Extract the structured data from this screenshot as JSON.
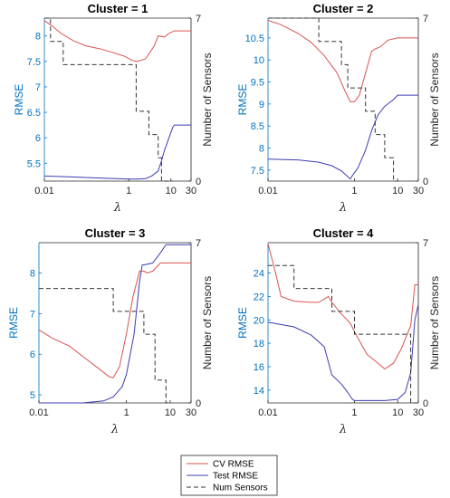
{
  "colors": {
    "cv": "#d9534f",
    "test": "#3c3cb4",
    "num": "#333333",
    "left_axis": "#0072BD"
  },
  "legend": {
    "entries": [
      "CV RMSE",
      "Test RMSE",
      "Num Sensors"
    ]
  },
  "chart_data": [
    {
      "type": "line",
      "title": "Cluster = 1",
      "xlabel": "λ",
      "ylabel": "RMSE",
      "y2label": "Number of Sensors",
      "xscale": "log",
      "xlim": [
        0.01,
        30
      ],
      "xticks": [
        0.01,
        1,
        10,
        30
      ],
      "xtick_labels": [
        "0.01",
        "1",
        "10",
        "30"
      ],
      "ylim": [
        5.15,
        8.35
      ],
      "yticks": [
        5.5,
        6,
        6.5,
        7,
        7.5,
        8
      ],
      "ytick_labels": [
        "5.5",
        "6",
        "6.5",
        "7",
        "7.5",
        "8"
      ],
      "y2lim": [
        0,
        7
      ],
      "y2ticks": [
        0,
        7
      ],
      "series": [
        {
          "name": "CV RMSE",
          "axis": "left",
          "x": [
            0.01,
            0.015,
            0.025,
            0.05,
            0.1,
            0.2,
            0.4,
            0.8,
            1.2,
            1.6,
            2.5,
            4,
            5,
            7,
            9,
            12,
            20,
            30
          ],
          "y": [
            8.3,
            8.2,
            8.05,
            7.9,
            7.8,
            7.75,
            7.68,
            7.6,
            7.52,
            7.5,
            7.55,
            7.8,
            8.0,
            7.98,
            8.05,
            8.1,
            8.1,
            8.1
          ]
        },
        {
          "name": "Test RMSE",
          "axis": "left",
          "x": [
            0.01,
            0.05,
            0.2,
            0.5,
            1,
            1.6,
            2.5,
            3.5,
            5,
            6,
            7,
            9,
            11,
            12,
            20,
            30
          ],
          "y": [
            5.25,
            5.23,
            5.21,
            5.2,
            5.19,
            5.19,
            5.2,
            5.25,
            5.35,
            5.55,
            5.75,
            6.0,
            6.2,
            6.25,
            6.25,
            6.25
          ]
        },
        {
          "name": "Num Sensors",
          "axis": "right",
          "step": true,
          "x": [
            0.01,
            0.014,
            0.028,
            1.5,
            3,
            5,
            6,
            10,
            11
          ],
          "y": [
            7,
            6,
            5,
            3,
            2,
            1,
            0,
            0,
            0
          ]
        }
      ]
    },
    {
      "type": "line",
      "title": "Cluster = 2",
      "xlabel": "λ",
      "ylabel": "RMSE",
      "y2label": "Number of Sensors",
      "xscale": "log",
      "xlim": [
        0.01,
        30
      ],
      "xticks": [
        0.01,
        1,
        10,
        30
      ],
      "xtick_labels": [
        "0.01",
        "1",
        "10",
        "30"
      ],
      "ylim": [
        7.25,
        10.95
      ],
      "yticks": [
        7.5,
        8,
        8.5,
        9,
        9.5,
        10,
        10.5
      ],
      "ytick_labels": [
        "7.5",
        "8",
        "8.5",
        "9",
        "9.5",
        "10",
        "10.5"
      ],
      "y2lim": [
        0,
        7
      ],
      "y2ticks": [
        0,
        7
      ],
      "series": [
        {
          "name": "CV RMSE",
          "axis": "left",
          "x": [
            0.01,
            0.02,
            0.05,
            0.1,
            0.2,
            0.4,
            0.6,
            0.8,
            1,
            1.3,
            1.8,
            2.5,
            3,
            4,
            6,
            10,
            20,
            30
          ],
          "y": [
            10.9,
            10.8,
            10.6,
            10.4,
            10.1,
            9.7,
            9.3,
            9.05,
            9.05,
            9.2,
            9.7,
            10.2,
            10.25,
            10.3,
            10.45,
            10.5,
            10.5,
            10.5
          ]
        },
        {
          "name": "Test RMSE",
          "axis": "left",
          "x": [
            0.01,
            0.05,
            0.15,
            0.3,
            0.5,
            0.7,
            0.8,
            0.9,
            1.2,
            1.8,
            2.5,
            3.5,
            5,
            8,
            10,
            20,
            30
          ],
          "y": [
            7.75,
            7.73,
            7.68,
            7.6,
            7.48,
            7.35,
            7.3,
            7.38,
            7.55,
            7.95,
            8.4,
            8.75,
            8.95,
            9.1,
            9.2,
            9.2,
            9.2
          ]
        },
        {
          "name": "Num Sensors",
          "axis": "right",
          "step": true,
          "x": [
            0.01,
            0.15,
            0.5,
            0.7,
            1.8,
            3,
            5,
            8,
            10
          ],
          "y": [
            7,
            6,
            5,
            4,
            3,
            2,
            1,
            0,
            0
          ]
        }
      ]
    },
    {
      "type": "line",
      "title": "Cluster = 3",
      "xlabel": "λ",
      "ylabel": "RMSE",
      "y2label": "Number of Sensors",
      "xscale": "log",
      "xlim": [
        0.01,
        30
      ],
      "xticks": [
        0.01,
        1,
        10,
        30
      ],
      "xtick_labels": [
        "0.01",
        "1",
        "10",
        "30"
      ],
      "ylim": [
        4.8,
        8.75
      ],
      "yticks": [
        5,
        6,
        7,
        8
      ],
      "ytick_labels": [
        "5",
        "6",
        "7",
        "8"
      ],
      "y2lim": [
        0,
        7
      ],
      "y2ticks": [
        0,
        7
      ],
      "series": [
        {
          "name": "CV RMSE",
          "axis": "left",
          "x": [
            0.01,
            0.02,
            0.05,
            0.1,
            0.2,
            0.4,
            0.5,
            0.7,
            1,
            1.4,
            2,
            2.5,
            3,
            4,
            6,
            10,
            20,
            30
          ],
          "y": [
            6.6,
            6.4,
            6.2,
            5.95,
            5.7,
            5.45,
            5.42,
            5.7,
            6.5,
            7.4,
            8.05,
            8.05,
            8.0,
            8.05,
            8.25,
            8.25,
            8.25,
            8.25
          ]
        },
        {
          "name": "Test RMSE",
          "axis": "left",
          "x": [
            0.01,
            0.1,
            0.3,
            0.5,
            0.8,
            1,
            1.5,
            2,
            2.3,
            2.5,
            4,
            6,
            8,
            10,
            20,
            30
          ],
          "y": [
            4.8,
            4.8,
            4.85,
            4.95,
            5.2,
            5.5,
            6.5,
            7.8,
            8.2,
            8.2,
            8.25,
            8.5,
            8.7,
            8.7,
            8.7,
            8.7
          ]
        },
        {
          "name": "Num Sensors",
          "axis": "right",
          "step": true,
          "x": [
            0.01,
            0.5,
            2.5,
            4.5,
            8,
            9.5
          ],
          "y": [
            5,
            4,
            3,
            1,
            0,
            0
          ]
        }
      ]
    },
    {
      "type": "line",
      "title": "Cluster = 4",
      "xlabel": "λ",
      "ylabel": "RMSE",
      "y2label": "Number of Sensors",
      "xscale": "log",
      "xlim": [
        0.01,
        30
      ],
      "xticks": [
        0.01,
        1,
        10,
        30
      ],
      "xtick_labels": [
        "0.01",
        "1",
        "10",
        "30"
      ],
      "ylim": [
        12.9,
        26.6
      ],
      "yticks": [
        14,
        16,
        18,
        20,
        22,
        24
      ],
      "ytick_labels": [
        "14",
        "16",
        "18",
        "20",
        "22",
        "24"
      ],
      "y2lim": [
        0,
        7
      ],
      "y2ticks": [
        0,
        7
      ],
      "series": [
        {
          "name": "CV RMSE",
          "axis": "left",
          "x": [
            0.01,
            0.015,
            0.02,
            0.04,
            0.1,
            0.15,
            0.25,
            0.3,
            0.5,
            0.8,
            1,
            1.5,
            2,
            3,
            5,
            8,
            12,
            20,
            25,
            30
          ],
          "y": [
            26.5,
            24.0,
            22.0,
            21.6,
            21.5,
            21.5,
            22.0,
            21.5,
            20.5,
            19.7,
            19.0,
            17.8,
            17.0,
            16.5,
            15.8,
            16.3,
            17.5,
            19.5,
            23.0,
            23.0
          ]
        },
        {
          "name": "Test RMSE",
          "axis": "left",
          "x": [
            0.01,
            0.04,
            0.1,
            0.2,
            0.3,
            0.5,
            0.7,
            0.9,
            1,
            1.2,
            2,
            5,
            10,
            15,
            20,
            25,
            30
          ],
          "y": [
            19.8,
            19.4,
            18.7,
            17.7,
            15.3,
            14.5,
            13.8,
            13.2,
            13.1,
            13.1,
            13.1,
            13.1,
            13.2,
            13.8,
            15.5,
            20.0,
            21.3
          ]
        },
        {
          "name": "Num Sensors",
          "axis": "right",
          "step": true,
          "x": [
            0.01,
            0.04,
            0.3,
            1,
            20,
            27,
            30
          ],
          "y": [
            6,
            5,
            4,
            3,
            0,
            0,
            0
          ]
        }
      ]
    }
  ]
}
